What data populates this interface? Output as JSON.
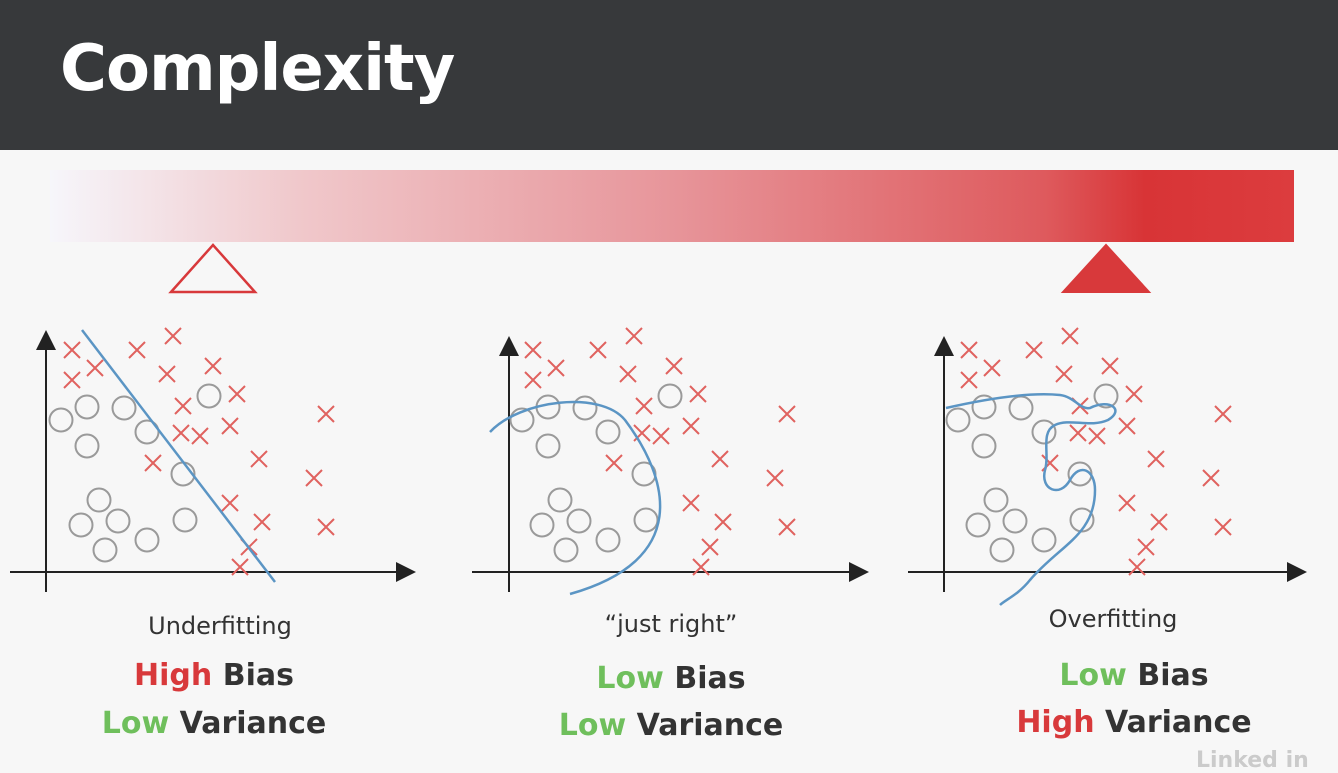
{
  "title": "Complexity",
  "colors": {
    "header_bg": "#37393b",
    "accent_red": "#d8393b",
    "accent_green": "#6fbf5c",
    "marker_x": "#e0625f",
    "marker_o": "#9a9a9a",
    "curve": "#5b95c4"
  },
  "panels": [
    {
      "caption": "Underfitting",
      "bias_word": "High",
      "bias_label": "Bias",
      "variance_word": "Low",
      "variance_label": "Variance"
    },
    {
      "caption": "“just right”",
      "bias_word": "Low",
      "bias_label": "Bias",
      "variance_word": "Low",
      "variance_label": "Variance"
    },
    {
      "caption": "Overfitting",
      "bias_word": "Low",
      "bias_label": "Bias",
      "variance_word": "High",
      "variance_label": "Variance"
    }
  ],
  "watermark": "Linked in"
}
